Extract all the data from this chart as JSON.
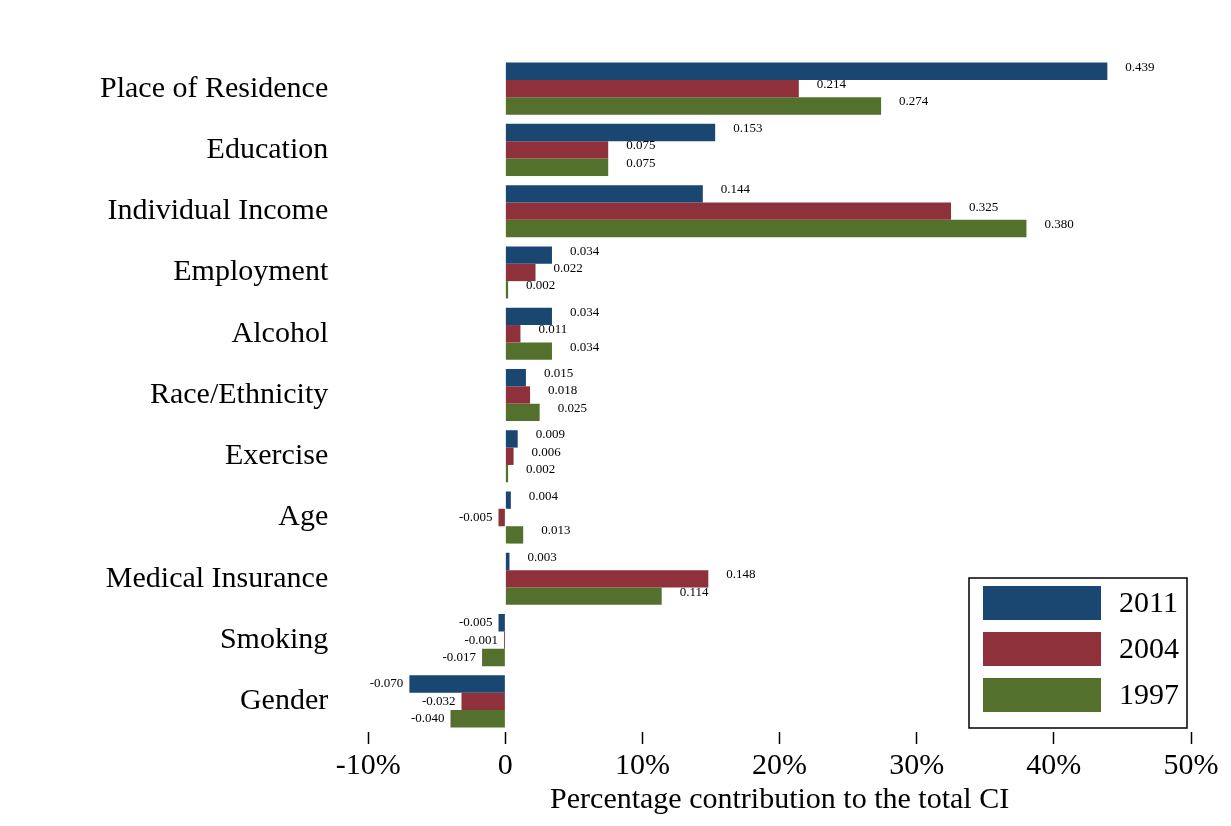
{
  "chart_data": {
    "type": "bar",
    "orientation": "horizontal",
    "xlabel": "Percentage contribution to the total CI",
    "categories": [
      "Place of Residence",
      "Education",
      "Individual Income",
      "Employment",
      "Alcohol",
      "Race/Ethnicity",
      "Exercise",
      "Age",
      "Medical Insurance",
      "Smoking",
      "Gender"
    ],
    "series": [
      {
        "name": "2011",
        "color": "#1a4772",
        "values": [
          0.439,
          0.153,
          0.144,
          0.034,
          0.034,
          0.015,
          0.009,
          0.004,
          0.003,
          -0.005,
          -0.07
        ],
        "value_labels": [
          "0.439",
          "0.153",
          "0.144",
          "0.034",
          "0.034",
          "0.015",
          "0.009",
          "0.004",
          "0.003",
          "-0.005",
          "-0.070"
        ]
      },
      {
        "name": "2004",
        "color": "#8e313b",
        "values": [
          0.214,
          0.075,
          0.325,
          0.022,
          0.011,
          0.018,
          0.006,
          -0.005,
          0.148,
          -0.001,
          -0.032
        ],
        "value_labels": [
          "0.214",
          "0.075",
          "0.325",
          "0.022",
          "0.011",
          "0.018",
          "0.006",
          "-0.005",
          "0.148",
          "-0.001",
          "-0.032"
        ]
      },
      {
        "name": "1997",
        "color": "#53712d",
        "values": [
          0.274,
          0.075,
          0.38,
          0.002,
          0.034,
          0.025,
          0.002,
          0.013,
          0.114,
          -0.017,
          -0.04
        ],
        "value_labels": [
          "0.274",
          "0.075",
          "0.380",
          "0.002",
          "0.034",
          "0.025",
          "0.002",
          "0.013",
          "0.114",
          "-0.017",
          "-0.040"
        ]
      }
    ],
    "xlim": [
      -0.1,
      0.5
    ],
    "xticks": [
      {
        "value": -0.1,
        "label": "-10%"
      },
      {
        "value": 0,
        "label": "0"
      },
      {
        "value": 0.1,
        "label": "10%"
      },
      {
        "value": 0.2,
        "label": "20%"
      },
      {
        "value": 0.3,
        "label": "30%"
      },
      {
        "value": 0.4,
        "label": "40%"
      },
      {
        "value": 0.5,
        "label": "50%"
      }
    ],
    "grid": false,
    "legend": "bottom right"
  }
}
